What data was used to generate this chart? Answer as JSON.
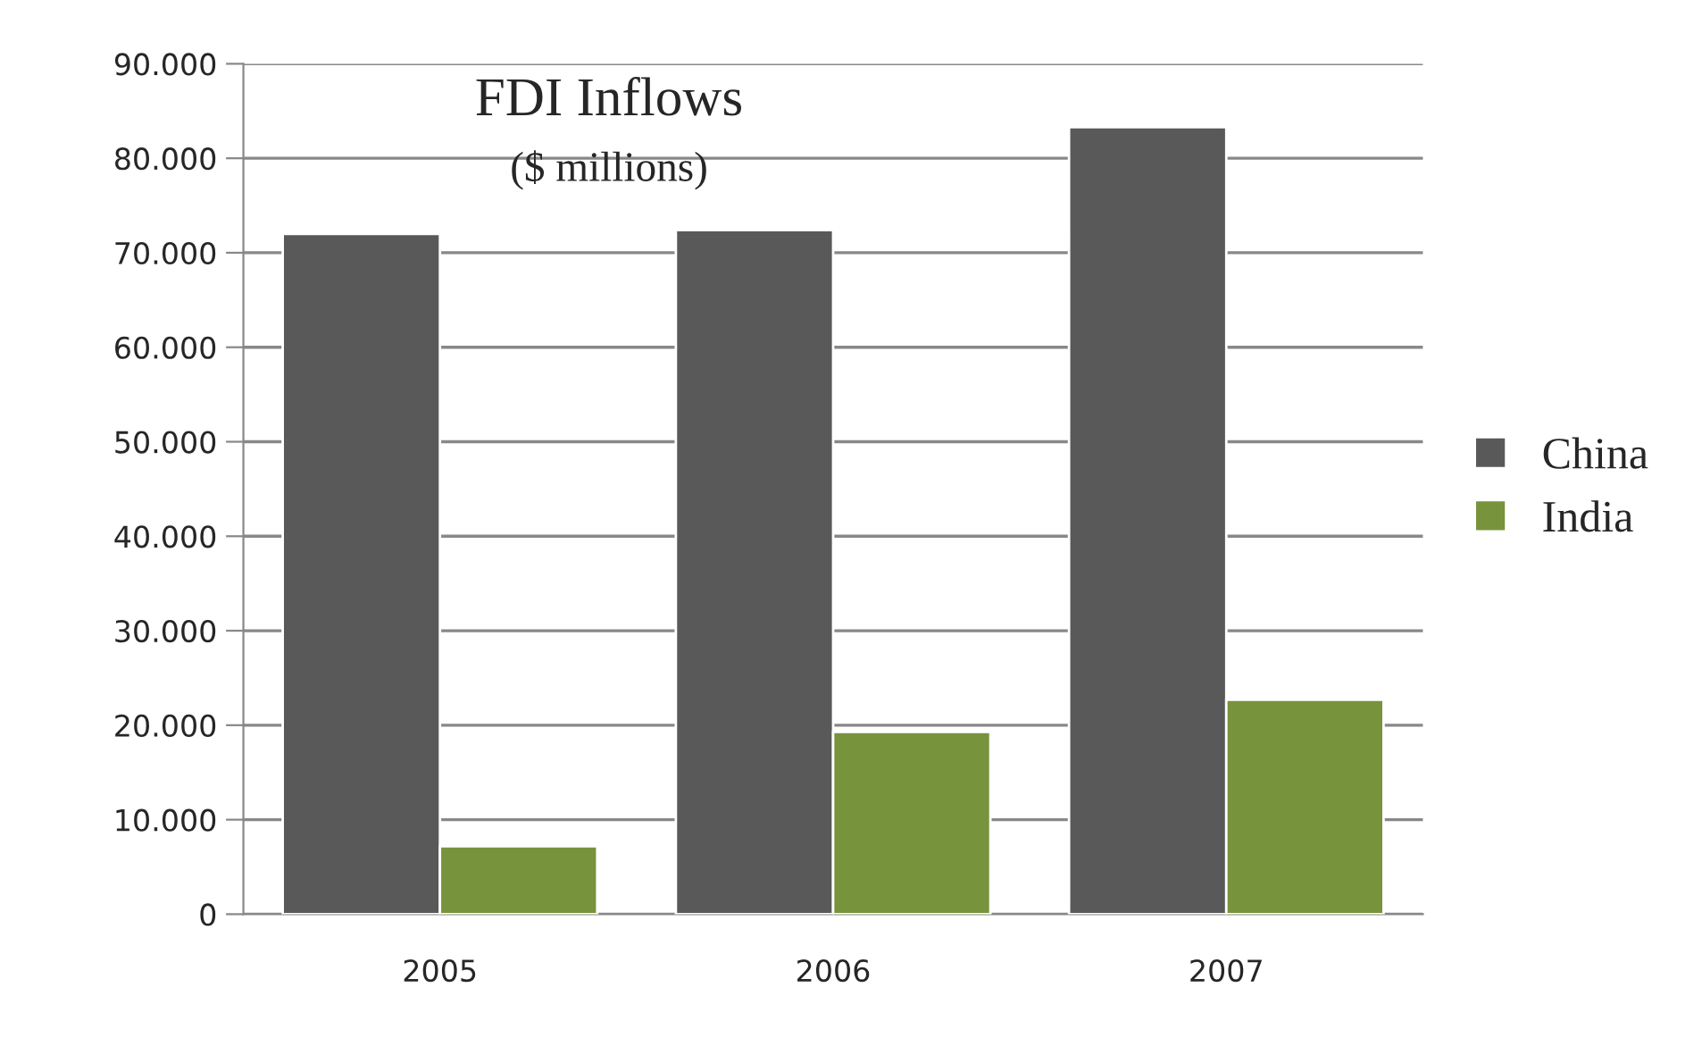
{
  "chart_data": {
    "type": "bar",
    "title": "FDI Inflows",
    "subtitle": "($ millions)",
    "categories": [
      "2005",
      "2006",
      "2007"
    ],
    "series": [
      {
        "name": "China",
        "color": "#595959",
        "values": [
          72000,
          72400,
          83300
        ]
      },
      {
        "name": "India",
        "color": "#77933c",
        "values": [
          7200,
          19300,
          22700
        ]
      }
    ],
    "ylim": [
      0,
      90000
    ],
    "yticks": [
      0,
      {
        "value": 10000,
        "label": "10.000"
      },
      {
        "value": 20000,
        "label": "20.000"
      },
      {
        "value": 30000,
        "label": "30.000"
      },
      {
        "value": 40000,
        "label": "40.000"
      },
      {
        "value": 50000,
        "label": "50.000"
      },
      {
        "value": 60000,
        "label": "60.000"
      },
      {
        "value": 70000,
        "label": "70.000"
      },
      {
        "value": 80000,
        "label": "80.000"
      },
      {
        "value": 90000,
        "label": "90.000"
      }
    ],
    "grid": "y",
    "legend": "right"
  }
}
